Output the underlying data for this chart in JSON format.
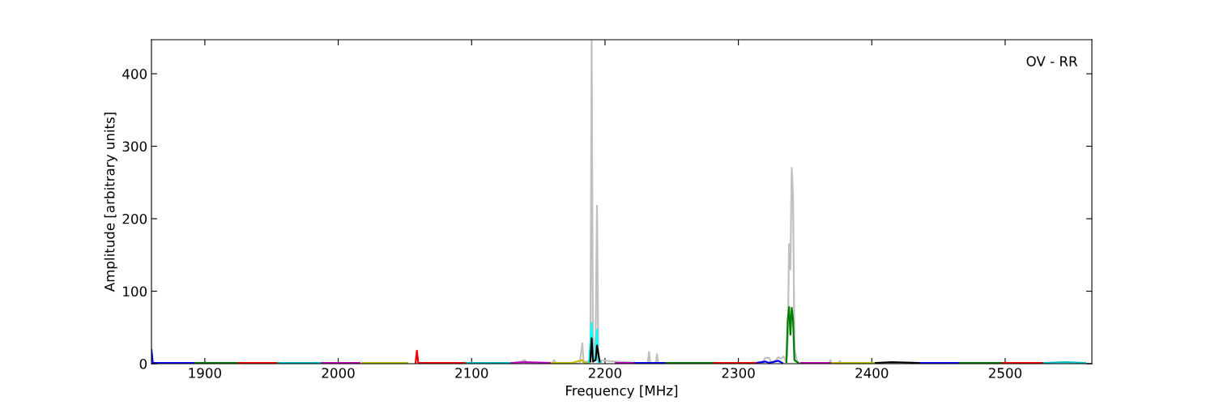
{
  "chart_data": {
    "type": "line",
    "xlabel": "Frequency [MHz]",
    "ylabel": "Amplitude [arbitrary units]",
    "annotations": [
      "OV - RR"
    ],
    "xlim": [
      1860,
      2565
    ],
    "ylim": [
      0,
      447
    ],
    "xticks": [
      1900,
      2000,
      2100,
      2200,
      2300,
      2400,
      2500
    ],
    "yticks": [
      0,
      100,
      200,
      300,
      400
    ],
    "grid": false,
    "legend": false,
    "series": [
      {
        "color": "#c0c0c0",
        "x": [
          2130,
          2137,
          2140,
          2142,
          2160,
          2162,
          2163,
          2181,
          2183,
          2184,
          2189,
          2190,
          2191,
          2193,
          2194,
          2195,
          2200,
          2232,
          2233,
          2234,
          2238,
          2239,
          2240,
          2318,
          2320,
          2323,
          2325,
          2328,
          2330,
          2332,
          2334,
          2336,
          2337,
          2338,
          2339,
          2340,
          2341,
          2342,
          2344,
          2346,
          2368,
          2369,
          2370,
          2375,
          2376,
          2377
        ],
        "values": [
          0,
          3,
          5,
          0,
          0,
          5,
          0,
          0,
          28,
          3,
          3,
          447,
          5,
          40,
          218,
          5,
          4,
          0,
          16,
          0,
          0,
          13,
          0,
          0,
          8,
          8,
          0,
          5,
          9,
          7,
          10,
          2,
          30,
          165,
          130,
          270,
          230,
          20,
          3,
          0,
          0,
          5,
          0,
          0,
          4,
          0
        ]
      },
      {
        "color": "#0000ff",
        "x": [
          1860,
          1861,
          1862,
          1875,
          1893,
          2000,
          2221,
          2233,
          2246,
          2280,
          2313,
          2320,
          2323,
          2330,
          2333,
          2400,
          2435,
          2450,
          2466
        ],
        "values": [
          19,
          1,
          1,
          1,
          1,
          null,
          1,
          1,
          1,
          null,
          1,
          3,
          1,
          4,
          1,
          null,
          1,
          1,
          1
        ]
      },
      {
        "color": "#008000",
        "x": [
          1893,
          1910,
          1925,
          2000,
          2246,
          2264,
          2282,
          2300,
          2336,
          2337,
          2338,
          2339,
          2340,
          2341,
          2342,
          2345,
          2400,
          2466,
          2482,
          2498
        ],
        "values": [
          1,
          1,
          1,
          null,
          1,
          1,
          1,
          null,
          2,
          60,
          78,
          40,
          77,
          60,
          5,
          1,
          null,
          1,
          1,
          1
        ]
      },
      {
        "color": "#ff0000",
        "x": [
          1925,
          1940,
          1955,
          2000,
          2058,
          2059,
          2060,
          2080,
          2096,
          2200,
          2282,
          2298,
          2313,
          2400,
          2498,
          2514,
          2529
        ],
        "values": [
          1,
          1,
          1,
          null,
          1,
          18,
          1,
          1,
          1,
          null,
          1,
          1,
          1,
          null,
          1,
          1,
          1
        ]
      },
      {
        "color": "#00bfbf",
        "x": [
          1955,
          1970,
          1988,
          2050,
          2096,
          2113,
          2130,
          2300,
          2529,
          2545,
          2560
        ],
        "values": [
          1,
          1,
          1,
          null,
          1,
          1,
          1,
          null,
          1,
          2,
          1
        ]
      },
      {
        "color": "#bf00bf",
        "x": [
          1988,
          2002,
          2016,
          2100,
          2130,
          2140,
          2160,
          2180,
          2208,
          2215,
          2221,
          2300,
          2347,
          2358,
          2370
        ],
        "values": [
          1,
          1,
          1,
          null,
          1,
          2,
          1,
          null,
          1,
          1,
          1,
          null,
          1,
          1,
          1
        ]
      },
      {
        "color": "#bfbf00",
        "x": [
          2018,
          2035,
          2052,
          2100,
          2160,
          2175,
          2183,
          2184,
          2188,
          2300,
          2370,
          2386,
          2403
        ],
        "values": [
          1,
          1,
          1,
          null,
          1,
          1,
          5,
          1,
          1,
          null,
          1,
          1,
          1
        ]
      },
      {
        "color": "#00ffff",
        "x": [
          2188,
          2190,
          2191,
          2193,
          2194,
          2195,
          2197
        ],
        "values": [
          2,
          56,
          5,
          10,
          47,
          2,
          2
        ]
      },
      {
        "color": "#000000",
        "x": [
          2189,
          2190,
          2191,
          2193,
          2194,
          2196,
          2300,
          2403,
          2415,
          2435
        ],
        "values": [
          3,
          35,
          3,
          5,
          25,
          3,
          null,
          1,
          2,
          1
        ]
      }
    ]
  }
}
